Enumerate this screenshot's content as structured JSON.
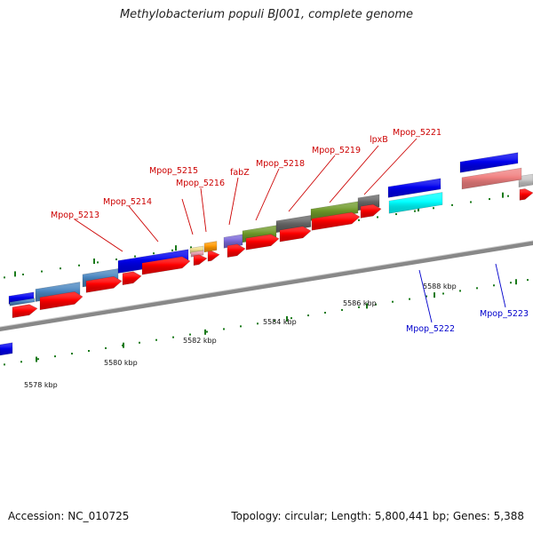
{
  "title": "Methylobacterium populi BJ001, complete genome",
  "footer": {
    "accession": "Accession: NC_010725",
    "topology": "Topology: circular; Length: 5,800,441 bp; Genes: 5,388"
  },
  "colors": {
    "red": "#ff0000",
    "blue": "#0000ee",
    "steel": "#4a86c0",
    "salmon": "#f08080",
    "cyan": "#00ffff",
    "olive": "#6f9a2a",
    "grey": "#666666",
    "lavender": "#7b68d8",
    "orange": "#ff9900",
    "khaki": "#f0e090",
    "pink": "#e8a0b0",
    "silver": "#c8c8c8",
    "tick": "#1a7a1a",
    "label_top": "#cc0000",
    "label_bottom": "#0000cc"
  },
  "scale_labels": [
    {
      "text": "5578 kbp",
      "kbp": 5578
    },
    {
      "text": "5580 kbp",
      "kbp": 5580
    },
    {
      "text": "5582 kbp",
      "kbp": 5582
    },
    {
      "text": "5584 kbp",
      "kbp": 5584
    },
    {
      "text": "5586 kbp",
      "kbp": 5586
    },
    {
      "text": "5588 kbp",
      "kbp": 5588
    }
  ],
  "gene_labels": [
    {
      "text": "Mpop_5213",
      "strand": "top"
    },
    {
      "text": "Mpop_5214",
      "strand": "top"
    },
    {
      "text": "Mpop_5215",
      "strand": "top"
    },
    {
      "text": "Mpop_5216",
      "strand": "top"
    },
    {
      "text": "fabZ",
      "strand": "top"
    },
    {
      "text": "Mpop_5218",
      "strand": "top"
    },
    {
      "text": "Mpop_5219",
      "strand": "top"
    },
    {
      "text": "lpxB",
      "strand": "top"
    },
    {
      "text": "Mpop_5221",
      "strand": "top"
    },
    {
      "text": "Mpop_5222",
      "strand": "bottom"
    },
    {
      "text": "Mpop_5223",
      "strand": "bottom"
    }
  ]
}
